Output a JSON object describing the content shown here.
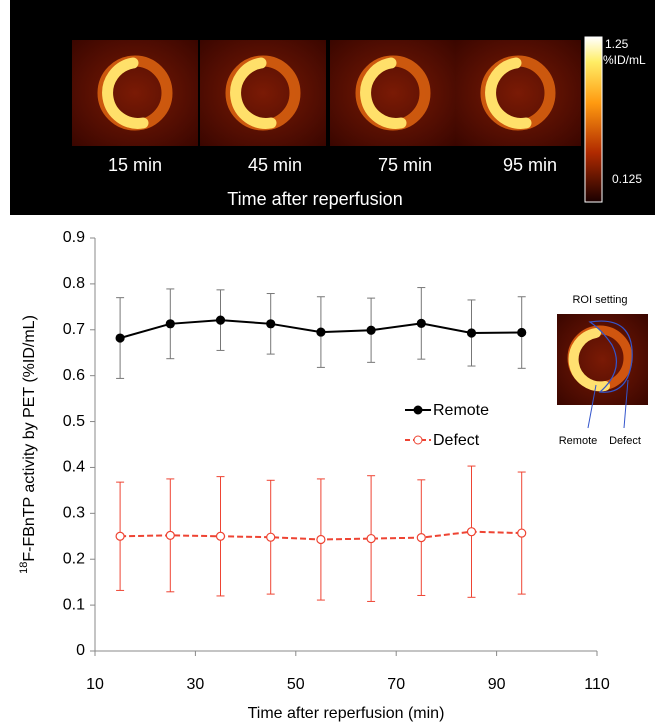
{
  "panel": {
    "image_labels": [
      "15 min",
      "45 min",
      "75 min",
      "95 min"
    ],
    "caption": "Time after reperfusion",
    "colorbar": {
      "max": 1.25,
      "unit": "%ID/mL",
      "min": 0.125
    }
  },
  "roi": {
    "title": "ROI setting",
    "labels": [
      "Remote",
      "Defect"
    ]
  },
  "chart_data": {
    "type": "line",
    "xlabel": "Time after reperfusion (min)",
    "ylabel_prefix": "18",
    "ylabel": "F-FBnTP activity by PET (%ID/mL)",
    "x": [
      15,
      25,
      35,
      45,
      55,
      65,
      75,
      85,
      95
    ],
    "series": [
      {
        "name": "Remote",
        "color": "#000000",
        "dashed": false,
        "marker_fill": "#000000",
        "values": [
          0.682,
          0.713,
          0.721,
          0.713,
          0.695,
          0.699,
          0.714,
          0.693,
          0.694
        ],
        "errors": [
          0.088,
          0.076,
          0.066,
          0.066,
          0.077,
          0.07,
          0.078,
          0.072,
          0.078
        ]
      },
      {
        "name": "Defect",
        "color": "#ee4433",
        "dashed": true,
        "marker_fill": "#ffffff",
        "values": [
          0.25,
          0.252,
          0.25,
          0.248,
          0.243,
          0.245,
          0.247,
          0.26,
          0.257
        ],
        "errors": [
          0.118,
          0.123,
          0.13,
          0.124,
          0.132,
          0.137,
          0.126,
          0.143,
          0.133
        ]
      }
    ],
    "xlim": [
      10,
      110
    ],
    "xticks": [
      10,
      30,
      50,
      70,
      90,
      110
    ],
    "ylim": [
      0,
      0.9
    ],
    "yticks": [
      0,
      0.1,
      0.2,
      0.3,
      0.4,
      0.5,
      0.6,
      0.7,
      0.8,
      0.9
    ],
    "grid": false,
    "legend": "right"
  }
}
